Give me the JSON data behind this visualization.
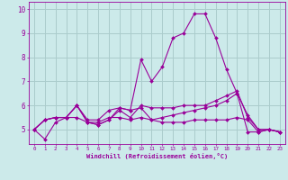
{
  "background_color": "#cceaea",
  "grid_color": "#aacccc",
  "line_color": "#990099",
  "xlabel": "Windchill (Refroidissement éolien,°C)",
  "xlim": [
    -0.5,
    23.5
  ],
  "ylim": [
    4.4,
    10.3
  ],
  "xticks": [
    0,
    1,
    2,
    3,
    4,
    5,
    6,
    7,
    8,
    9,
    10,
    11,
    12,
    13,
    14,
    15,
    16,
    17,
    18,
    19,
    20,
    21,
    22,
    23
  ],
  "yticks": [
    5,
    6,
    7,
    8,
    9,
    10
  ],
  "series": [
    [
      5.0,
      4.6,
      5.3,
      5.5,
      5.5,
      5.3,
      5.2,
      5.4,
      5.9,
      5.8,
      7.9,
      7.0,
      7.6,
      8.8,
      9.0,
      9.8,
      9.8,
      8.8,
      7.5,
      6.5,
      4.9,
      4.9,
      5.0,
      4.9
    ],
    [
      5.0,
      5.4,
      5.5,
      5.5,
      6.0,
      5.4,
      5.4,
      5.8,
      5.9,
      5.8,
      5.9,
      5.4,
      5.5,
      5.6,
      5.7,
      5.8,
      5.9,
      6.0,
      6.2,
      6.5,
      5.6,
      5.0,
      5.0,
      4.9
    ],
    [
      5.0,
      5.4,
      5.5,
      5.5,
      6.0,
      5.3,
      5.3,
      5.5,
      5.5,
      5.4,
      5.5,
      5.4,
      5.3,
      5.3,
      5.3,
      5.4,
      5.4,
      5.4,
      5.4,
      5.5,
      5.4,
      4.9,
      5.0,
      4.9
    ],
    [
      5.0,
      5.4,
      5.5,
      5.5,
      6.0,
      5.3,
      5.2,
      5.4,
      5.8,
      5.5,
      6.0,
      5.9,
      5.9,
      5.9,
      6.0,
      6.0,
      6.0,
      6.2,
      6.4,
      6.6,
      5.5,
      5.0,
      5.0,
      4.9
    ]
  ]
}
